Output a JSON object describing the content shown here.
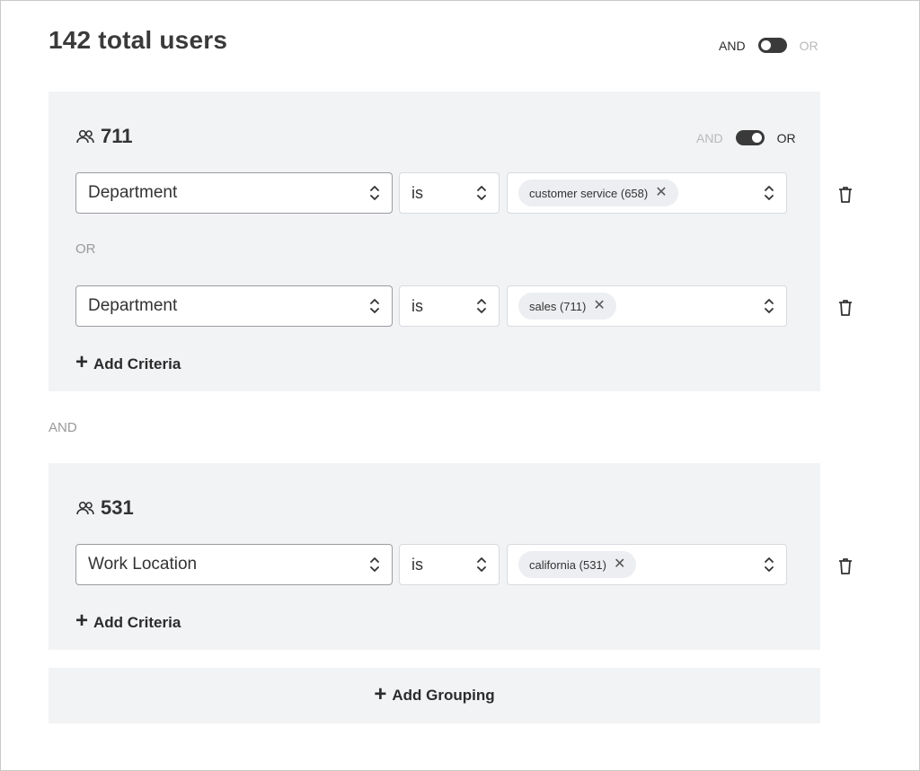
{
  "header": {
    "title": "142 total users",
    "toggle": {
      "left_label": "AND",
      "right_label": "OR",
      "active": "AND"
    }
  },
  "groups": [
    {
      "count": "711",
      "toggle": {
        "left_label": "AND",
        "right_label": "OR",
        "active": "OR"
      },
      "connector": "OR",
      "criteria": [
        {
          "field": "Department",
          "operator": "is",
          "tags": [
            {
              "label": "customer service (658)"
            }
          ]
        },
        {
          "field": "Department",
          "operator": "is",
          "tags": [
            {
              "label": "sales (711)"
            }
          ]
        }
      ],
      "add_criteria_label": "Add Criteria"
    },
    {
      "count": "531",
      "criteria": [
        {
          "field": "Work Location",
          "operator": "is",
          "tags": [
            {
              "label": "california (531)"
            }
          ]
        }
      ],
      "add_criteria_label": "Add Criteria"
    }
  ],
  "group_connector": "AND",
  "add_grouping_label": "Add Grouping",
  "icons": {
    "users": "users-icon",
    "chevron": "chevron-up-down-icon",
    "remove": "close-icon",
    "trash": "trash-icon",
    "plus": "plus-icon"
  }
}
